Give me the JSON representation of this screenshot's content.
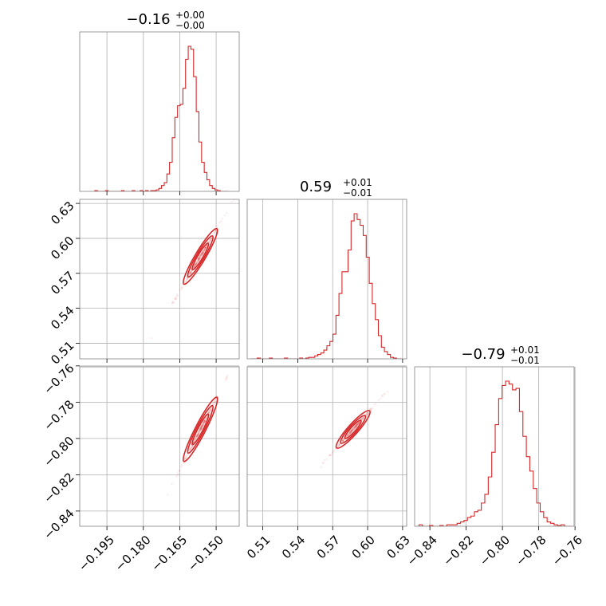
{
  "chart_data": {
    "type": "corner",
    "colors": {
      "series": "#d62728",
      "grid": "#b0b0b0",
      "frame": "#808080"
    },
    "parameters": [
      {
        "title_value": "−0.16",
        "err_plus": "+0.00",
        "err_minus": "−0.00",
        "range": [
          -0.2062,
          -0.1405
        ],
        "ticks": [
          -0.195,
          -0.18,
          -0.165,
          -0.15
        ],
        "tick_labels": [
          "−0.195",
          "−0.180",
          "−0.165",
          "−0.150"
        ],
        "hist_edges": [
          -0.2,
          -0.145
        ],
        "hist_heights": [
          0.005,
          0,
          0,
          0,
          0.005,
          0,
          0,
          0,
          0,
          0,
          0.005,
          0,
          0,
          0,
          0.005,
          0,
          0,
          0.005,
          0,
          0.005,
          0,
          0.005,
          0.005,
          0.01,
          0.02,
          0.04,
          0.06,
          0.12,
          0.2,
          0.37,
          0.51,
          0.59,
          0.6,
          0.71,
          0.91,
          1.0,
          0.98,
          0.79,
          0.55,
          0.34,
          0.2,
          0.13,
          0.08,
          0.04,
          0.02,
          0.01,
          0.005,
          0,
          0,
          0
        ]
      },
      {
        "title_value": "0.59",
        "err_plus": "+0.01",
        "err_minus": "−0.01",
        "range": [
          0.4966,
          0.6335
        ],
        "ticks": [
          0.51,
          0.54,
          0.57,
          0.6,
          0.63
        ],
        "tick_labels": [
          "0.51",
          "0.54",
          "0.57",
          "0.60",
          "0.63"
        ],
        "hist_edges": [
          0.5,
          0.63
        ],
        "hist_heights": [
          0,
          0,
          0.005,
          0,
          0,
          0,
          0.005,
          0,
          0,
          0,
          0,
          0.005,
          0,
          0,
          0,
          0,
          0.005,
          0,
          0.005,
          0.01,
          0.01,
          0.02,
          0.03,
          0.04,
          0.06,
          0.09,
          0.12,
          0.17,
          0.3,
          0.45,
          0.6,
          0.6,
          0.75,
          0.95,
          1.0,
          0.96,
          0.92,
          0.85,
          0.7,
          0.52,
          0.38,
          0.27,
          0.16,
          0.08,
          0.05,
          0.03,
          0.01,
          0.005,
          0,
          0
        ]
      },
      {
        "title_value": "−0.79",
        "err_plus": "+0.01",
        "err_minus": "−0.01",
        "range": [
          -0.8484,
          -0.7605
        ],
        "ticks": [
          -0.84,
          -0.82,
          -0.8,
          -0.78,
          -0.76
        ],
        "tick_labels": [
          "−0.84",
          "−0.82",
          "−0.80",
          "−0.78",
          "−0.76"
        ],
        "hist_edges": [
          -0.846,
          -0.762
        ],
        "hist_heights": [
          0.01,
          0,
          0,
          0.005,
          0,
          0,
          0.005,
          0,
          0.01,
          0.01,
          0.01,
          0.02,
          0.03,
          0.04,
          0.06,
          0.07,
          0.1,
          0.11,
          0.16,
          0.22,
          0.34,
          0.51,
          0.7,
          0.88,
          0.97,
          1.0,
          0.98,
          0.94,
          0.95,
          0.79,
          0.62,
          0.48,
          0.38,
          0.26,
          0.16,
          0.1,
          0.06,
          0.03,
          0.02,
          0.01,
          0.005,
          0.01,
          0,
          0
        ]
      }
    ],
    "correlations": [
      {
        "row": 1,
        "col": 0,
        "center": [
          -0.1565,
          0.5845
        ],
        "slope": 3.5
      },
      {
        "row": 2,
        "col": 0,
        "center": [
          -0.1565,
          -0.795
        ],
        "slope": 2.6
      },
      {
        "row": 2,
        "col": 1,
        "center": [
          0.5875,
          -0.795
        ],
        "slope": 0.72
      }
    ]
  }
}
